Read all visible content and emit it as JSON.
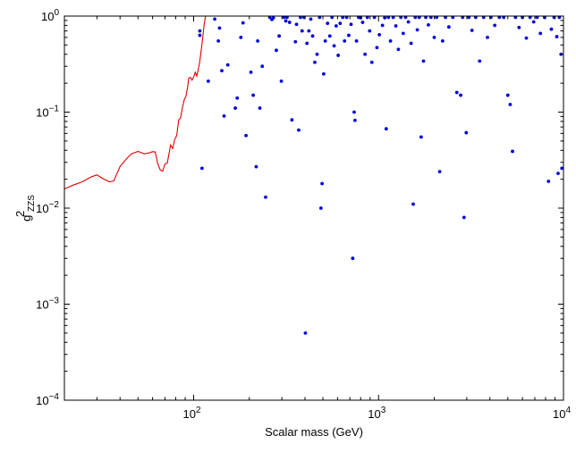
{
  "chart_data": {
    "type": "scatter",
    "xscale": "log",
    "yscale": "log",
    "xlim": [
      20,
      10000
    ],
    "ylim": [
      0.0001,
      1
    ],
    "xlabel": "Scalar mass (GeV)",
    "ylabel": {
      "base": "g",
      "sup": "2",
      "sub": "ZZS"
    },
    "x_ticks": [
      {
        "value": 100,
        "base": "10",
        "exp": "2"
      },
      {
        "value": 1000,
        "base": "10",
        "exp": "3"
      },
      {
        "value": 10000,
        "base": "10",
        "exp": "4"
      }
    ],
    "y_ticks": [
      {
        "value": 0.0001,
        "base": "10",
        "exp": "−4"
      },
      {
        "value": 0.001,
        "base": "10",
        "exp": "−3"
      },
      {
        "value": 0.01,
        "base": "10",
        "exp": "−2"
      },
      {
        "value": 0.1,
        "base": "10",
        "exp": "−1"
      },
      {
        "value": 1,
        "base": "10",
        "exp": "0"
      }
    ],
    "grid": false,
    "legend": "none",
    "colors": {
      "limit_curve": "#dd0000",
      "points": "#0000dd",
      "axes": "#000000"
    },
    "series": [
      {
        "kind": "line",
        "points": [
          [
            20,
            0.0158
          ],
          [
            22,
            0.0172
          ],
          [
            25,
            0.0188
          ],
          [
            28,
            0.0212
          ],
          [
            30,
            0.0222
          ],
          [
            32,
            0.0205
          ],
          [
            35,
            0.0188
          ],
          [
            37,
            0.0192
          ],
          [
            40,
            0.0271
          ],
          [
            43,
            0.0321
          ],
          [
            46,
            0.0367
          ],
          [
            50,
            0.039
          ],
          [
            54,
            0.0368
          ],
          [
            57,
            0.0375
          ],
          [
            60,
            0.0387
          ],
          [
            62,
            0.0384
          ],
          [
            64,
            0.0288
          ],
          [
            66,
            0.025
          ],
          [
            68,
            0.0242
          ],
          [
            70,
            0.029
          ],
          [
            72,
            0.0294
          ],
          [
            74,
            0.0391
          ],
          [
            75,
            0.0454
          ],
          [
            77,
            0.0418
          ],
          [
            79,
            0.052
          ],
          [
            81,
            0.057
          ],
          [
            83,
            0.083
          ],
          [
            85,
            0.087
          ],
          [
            87,
            0.112
          ],
          [
            89,
            0.135
          ],
          [
            91,
            0.148
          ],
          [
            93,
            0.188
          ],
          [
            94,
            0.225
          ],
          [
            96,
            0.23
          ],
          [
            98,
            0.215
          ],
          [
            100,
            0.232
          ],
          [
            102,
            0.26
          ],
          [
            104,
            0.238
          ],
          [
            106,
            0.28
          ],
          [
            108,
            0.34
          ],
          [
            110,
            0.45
          ],
          [
            112,
            0.6
          ],
          [
            114,
            0.82
          ],
          [
            116,
            1.0
          ]
        ]
      },
      {
        "kind": "scatter",
        "points": [
          [
            108,
            0.7
          ],
          [
            108,
            0.63
          ],
          [
            111,
            0.026
          ],
          [
            120,
            0.21
          ],
          [
            130,
            0.93
          ],
          [
            136,
            0.55
          ],
          [
            138,
            0.75
          ],
          [
            142,
            0.27
          ],
          [
            146,
            0.091
          ],
          [
            153,
            0.31
          ],
          [
            168,
            0.11
          ],
          [
            172,
            0.14
          ],
          [
            180,
            0.6
          ],
          [
            185,
            0.85
          ],
          [
            192,
            0.057
          ],
          [
            204,
            0.26
          ],
          [
            210,
            0.15
          ],
          [
            218,
            0.027
          ],
          [
            222,
            0.55
          ],
          [
            228,
            0.11
          ],
          [
            235,
            0.3
          ],
          [
            245,
            0.013
          ],
          [
            258,
            0.97
          ],
          [
            265,
            0.92
          ],
          [
            270,
            0.96
          ],
          [
            280,
            0.44
          ],
          [
            290,
            0.62
          ],
          [
            298,
            0.21
          ],
          [
            308,
            0.97
          ],
          [
            315,
            0.89
          ],
          [
            320,
            0.97
          ],
          [
            330,
            0.86
          ],
          [
            340,
            0.083
          ],
          [
            355,
            0.54
          ],
          [
            360,
            0.82
          ],
          [
            370,
            0.065
          ],
          [
            378,
            0.97
          ],
          [
            386,
            0.7
          ],
          [
            395,
            0.97
          ],
          [
            402,
            0.0005
          ],
          [
            410,
            0.52
          ],
          [
            420,
            0.7
          ],
          [
            430,
            0.93
          ],
          [
            440,
            0.62
          ],
          [
            452,
            0.33
          ],
          [
            465,
            0.4
          ],
          [
            480,
            0.97
          ],
          [
            488,
            0.01
          ],
          [
            495,
            0.018
          ],
          [
            505,
            0.25
          ],
          [
            515,
            0.55
          ],
          [
            530,
            0.84
          ],
          [
            545,
            0.62
          ],
          [
            560,
            0.97
          ],
          [
            575,
            0.49
          ],
          [
            590,
            0.79
          ],
          [
            605,
            0.39
          ],
          [
            620,
            0.84
          ],
          [
            640,
            0.97
          ],
          [
            655,
            0.55
          ],
          [
            672,
            0.97
          ],
          [
            690,
            0.63
          ],
          [
            710,
            0.82
          ],
          [
            725,
            0.003
          ],
          [
            738,
            0.1
          ],
          [
            746,
            0.082
          ],
          [
            760,
            0.55
          ],
          [
            780,
            0.97
          ],
          [
            800,
            0.96
          ],
          [
            820,
            0.86
          ],
          [
            845,
            0.4
          ],
          [
            870,
            0.97
          ],
          [
            895,
            0.7
          ],
          [
            920,
            0.33
          ],
          [
            950,
            0.97
          ],
          [
            980,
            0.47
          ],
          [
            1010,
            0.64
          ],
          [
            1050,
            0.8
          ],
          [
            1080,
            0.96
          ],
          [
            1100,
            0.067
          ],
          [
            1130,
            0.97
          ],
          [
            1160,
            0.55
          ],
          [
            1200,
            0.97
          ],
          [
            1240,
            0.79
          ],
          [
            1280,
            0.45
          ],
          [
            1320,
            0.97
          ],
          [
            1360,
            0.66
          ],
          [
            1400,
            0.97
          ],
          [
            1450,
            0.87
          ],
          [
            1500,
            0.52
          ],
          [
            1540,
            0.011
          ],
          [
            1580,
            0.97
          ],
          [
            1620,
            0.72
          ],
          [
            1660,
            0.97
          ],
          [
            1700,
            0.055
          ],
          [
            1750,
            0.34
          ],
          [
            1800,
            0.97
          ],
          [
            1860,
            0.81
          ],
          [
            1920,
            0.97
          ],
          [
            2000,
            0.6
          ],
          [
            2060,
            0.97
          ],
          [
            2140,
            0.024
          ],
          [
            2220,
            0.55
          ],
          [
            2300,
            0.97
          ],
          [
            2400,
            0.77
          ],
          [
            2520,
            0.97
          ],
          [
            2650,
            0.16
          ],
          [
            2780,
            0.15
          ],
          [
            2850,
            0.97
          ],
          [
            2900,
            0.008
          ],
          [
            2980,
            0.061
          ],
          [
            3080,
            0.97
          ],
          [
            3200,
            0.71
          ],
          [
            3350,
            0.97
          ],
          [
            3520,
            0.34
          ],
          [
            3700,
            0.97
          ],
          [
            3880,
            0.6
          ],
          [
            4050,
            0.97
          ],
          [
            4250,
            0.8
          ],
          [
            4500,
            0.97
          ],
          [
            4750,
            0.97
          ],
          [
            5000,
            0.15
          ],
          [
            5150,
            0.12
          ],
          [
            5300,
            0.039
          ],
          [
            5500,
            0.97
          ],
          [
            5750,
            0.76
          ],
          [
            6000,
            0.97
          ],
          [
            6300,
            0.59
          ],
          [
            6600,
            0.97
          ],
          [
            6900,
            0.87
          ],
          [
            7200,
            0.97
          ],
          [
            7500,
            0.66
          ],
          [
            7900,
            0.97
          ],
          [
            8300,
            0.019
          ],
          [
            8600,
            0.73
          ],
          [
            8900,
            0.97
          ],
          [
            9200,
            0.61
          ],
          [
            9350,
            0.023
          ],
          [
            9500,
            0.97
          ],
          [
            9700,
            0.4
          ],
          [
            9800,
            0.026
          ]
        ]
      }
    ]
  }
}
